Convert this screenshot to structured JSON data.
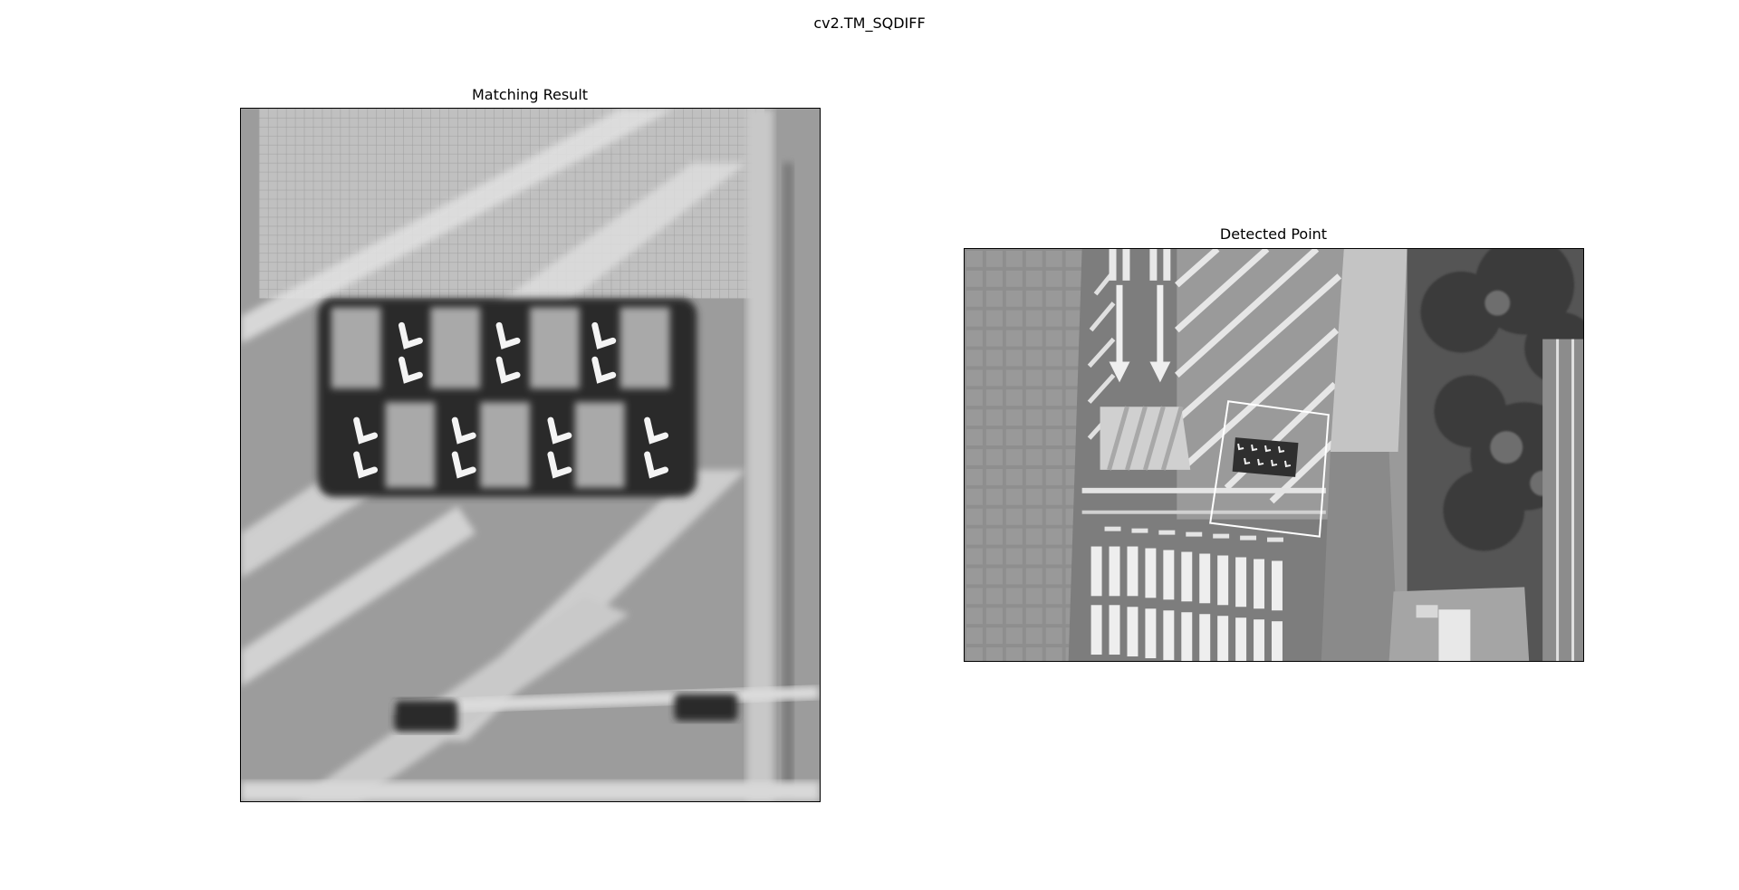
{
  "figure": {
    "suptitle": "cv2.TM_SQDIFF"
  },
  "panels": {
    "matching_result": {
      "title": "Matching Result",
      "image": "grayscale template-matching response map (blurred aerial pavement with row of parking markers)"
    },
    "detected_point": {
      "title": "Detected Point",
      "image": "grayscale aerial photo of road with arrows, crosswalks and trees; white quadrilateral marks detected location"
    }
  },
  "colors": {
    "background": "#ffffff",
    "frame": "#000000",
    "detection_box": "#ffffff"
  }
}
